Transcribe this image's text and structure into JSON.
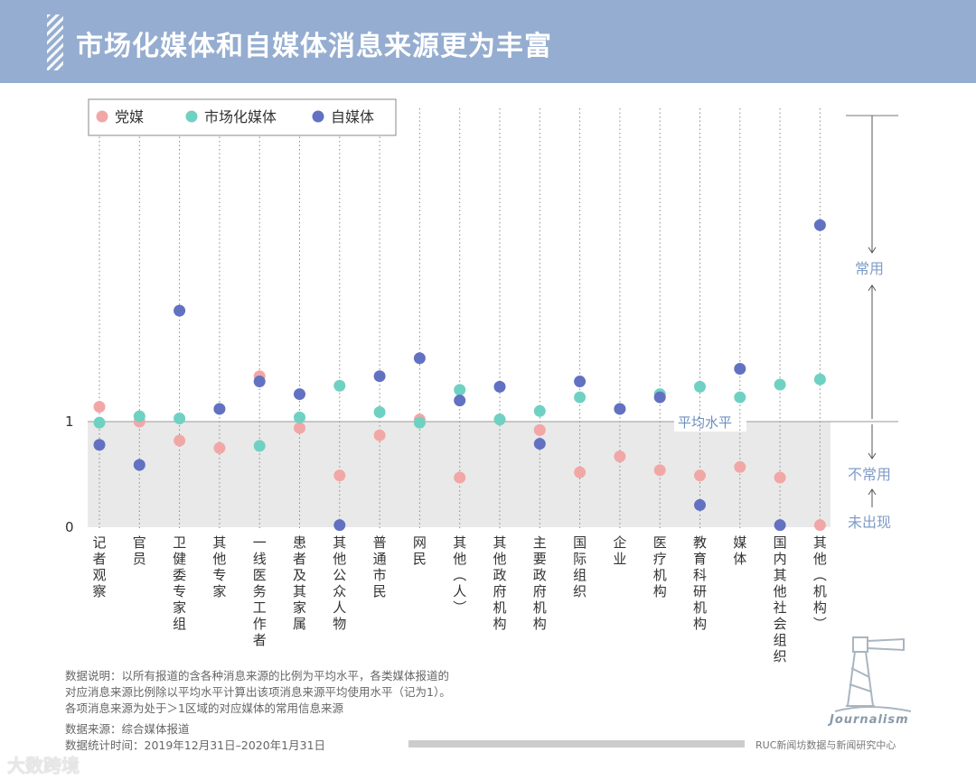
{
  "header": {
    "title": "市场化媒体和自媒体消息来源更为丰富"
  },
  "chart_data": {
    "type": "scatter",
    "title": "市场化媒体和自媒体消息来源更为丰富",
    "categories": [
      "记者观察",
      "官员",
      "卫健委专家组",
      "其他专家",
      "一线医务工作者",
      "患者及其家属",
      "其他公众人物",
      "普通市民",
      "网民",
      "其他（人）",
      "其他政府机构",
      "主要政府机构",
      "国际组织",
      "企业",
      "医疗机构",
      "教育科研机构",
      "媒体",
      "国内其他社会组织",
      "其他（机构）"
    ],
    "series": [
      {
        "name": "党媒",
        "color": "#f2a7a7",
        "values": [
          1.14,
          1.0,
          0.82,
          0.75,
          1.43,
          0.94,
          0.49,
          0.87,
          1.02,
          0.47,
          1.02,
          0.92,
          0.52,
          0.67,
          0.54,
          0.49,
          0.57,
          0.47,
          0.02
        ]
      },
      {
        "name": "市场化媒体",
        "color": "#6fd1c2",
        "values": [
          0.99,
          1.05,
          1.03,
          1.12,
          0.77,
          1.04,
          1.34,
          1.09,
          0.99,
          1.3,
          1.02,
          1.1,
          1.23,
          1.12,
          1.26,
          1.33,
          1.23,
          1.35,
          1.4
        ]
      },
      {
        "name": "自媒体",
        "color": "#6271c2",
        "values": [
          0.78,
          0.59,
          2.05,
          1.12,
          1.38,
          1.26,
          0.02,
          1.43,
          1.6,
          1.2,
          1.33,
          0.79,
          1.38,
          1.12,
          1.23,
          0.21,
          1.5,
          0.02,
          2.86
        ]
      }
    ],
    "y_ticks": [
      {
        "label": "0",
        "value": 0
      },
      {
        "label": "1",
        "value": 1
      }
    ],
    "reference_line": {
      "label": "平均水平",
      "value": 1
    },
    "regions": {
      "common": "常用",
      "uncommon": "不常用",
      "absent": "未出现"
    },
    "legend_position": "top-left"
  },
  "notes": {
    "line1": "数据说明：以所有报道的含各种消息来源的比例为平均水平，各类媒体报道的",
    "line2": "对应消息来源比例除以平均水平计算出该项消息来源平均使用水平（记为1）。",
    "line3": "各项消息来源为处于＞1区域的对应媒体的常用信息来源",
    "source": "数据来源：综合媒体报道",
    "period": "数据统计时间：2019年12月31日–2020年1月31日"
  },
  "credit": "RUC新闻坊数据与新闻研究中心",
  "logo_text": "Journalism",
  "watermark": "大数跨境"
}
